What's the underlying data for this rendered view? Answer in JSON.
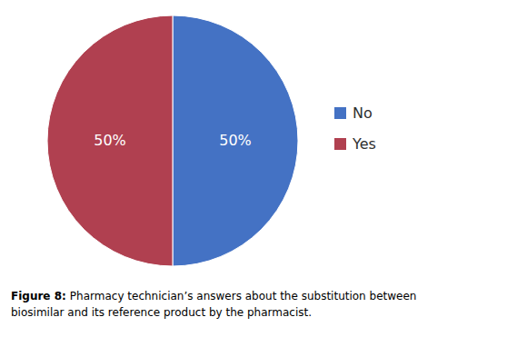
{
  "chart_data": {
    "type": "pie",
    "categories": [
      "No",
      "Yes"
    ],
    "values": [
      50,
      50
    ],
    "value_labels": [
      "50%",
      "50%"
    ],
    "data_labels": true,
    "colors": [
      "#4472C4",
      "#B04050"
    ],
    "legend": "right",
    "annotations": [
      "Figure 8:",
      "Pharmacy technician’s answers about the substitution between",
      "biosimilar and its reference product by the pharmacist."
    ]
  }
}
